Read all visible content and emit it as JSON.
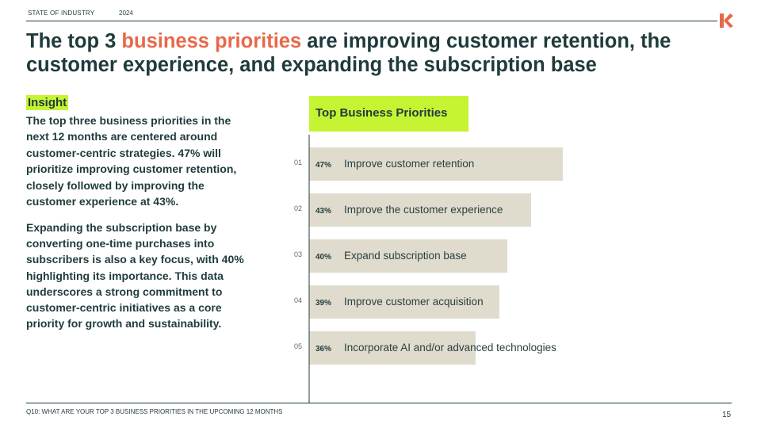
{
  "header": {
    "section": "STATE OF INDUSTRY",
    "year": "2024"
  },
  "title": {
    "prefix": "The top 3 ",
    "accent": "business priorities",
    "suffix": " are improving customer retention, the customer experience, and expanding the subscription base"
  },
  "insight": {
    "label": "Insight",
    "paragraph1": "The top three business priorities in the next 12 months are centered around customer-centric strategies. 47% will prioritize improving customer retention, closely followed by improving the customer experience at 43%.",
    "paragraph2": "Expanding the subscription base by converting one-time purchases into subscribers is also a key focus, with 40% highlighting its importance. This data underscores a strong commitment to customer-centric initiatives as a core priority for growth and sustainability."
  },
  "chart_data": {
    "type": "bar",
    "orientation": "horizontal",
    "title": "Top Business Priorities",
    "ranks": [
      "01",
      "02",
      "03",
      "04",
      "05"
    ],
    "categories": [
      "Improve customer retention",
      "Improve the customer experience",
      "Expand subscription base",
      "Improve customer acquisition",
      "Incorporate AI and/or advanced technologies"
    ],
    "values": [
      47,
      43,
      40,
      39,
      36
    ],
    "value_labels": [
      "47%",
      "43%",
      "40%",
      "39%",
      "36%"
    ],
    "unit": "%",
    "xlim": [
      15,
      65
    ],
    "grid": false,
    "xlabel": "",
    "ylabel": ""
  },
  "colors": {
    "accent": "#e8694a",
    "highlight": "#c6f432",
    "bar": "#e0dccd",
    "text": "#1f3b3c"
  },
  "footer": {
    "question": "Q10: WHAT ARE YOUR TOP 3 BUSINESS PRIORITIES IN THE UPCOMING 12 MONTHS",
    "page": "15"
  }
}
